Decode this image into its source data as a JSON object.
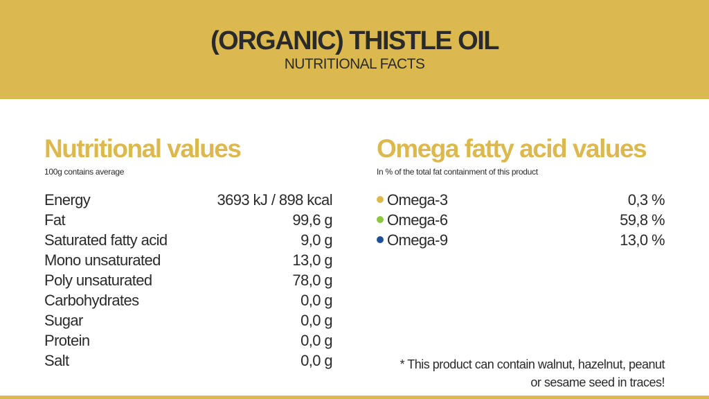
{
  "header": {
    "title": "(ORGANIC) THISTLE OIL",
    "subtitle": "NUTRITIONAL FACTS"
  },
  "nutritional": {
    "heading": "Nutritional values",
    "note": "100g contains average",
    "rows": [
      {
        "label": "Energy",
        "value": "3693 kJ / 898 kcal"
      },
      {
        "label": "Fat",
        "value": "99,6 g"
      },
      {
        "label": "Saturated fatty acid",
        "value": "9,0 g"
      },
      {
        "label": "Mono unsaturated",
        "value": "13,0 g"
      },
      {
        "label": "Poly unsaturated",
        "value": "78,0 g"
      },
      {
        "label": "Carbohydrates",
        "value": "0,0 g"
      },
      {
        "label": "Sugar",
        "value": "0,0 g"
      },
      {
        "label": "Protein",
        "value": "0,0 g"
      },
      {
        "label": "Salt",
        "value": "0,0 g"
      }
    ]
  },
  "omega": {
    "heading": "Omega fatty acid values",
    "note": "In % of the total fat containment of this product",
    "rows": [
      {
        "label": "Omega-3",
        "value": "0,3 %",
        "dot_color": "#dcb94e"
      },
      {
        "label": "Omega-6",
        "value": "59,8 %",
        "dot_color": "#8cc63f"
      },
      {
        "label": "Omega-9",
        "value": "13,0 %",
        "dot_color": "#1f4e96"
      }
    ]
  },
  "footnote": {
    "line1": "* This product can contain walnut, hazelnut, peanut",
    "line2": "or sesame seed in traces!"
  },
  "colors": {
    "accent": "#dcb94e",
    "text": "#2a2a2a"
  }
}
